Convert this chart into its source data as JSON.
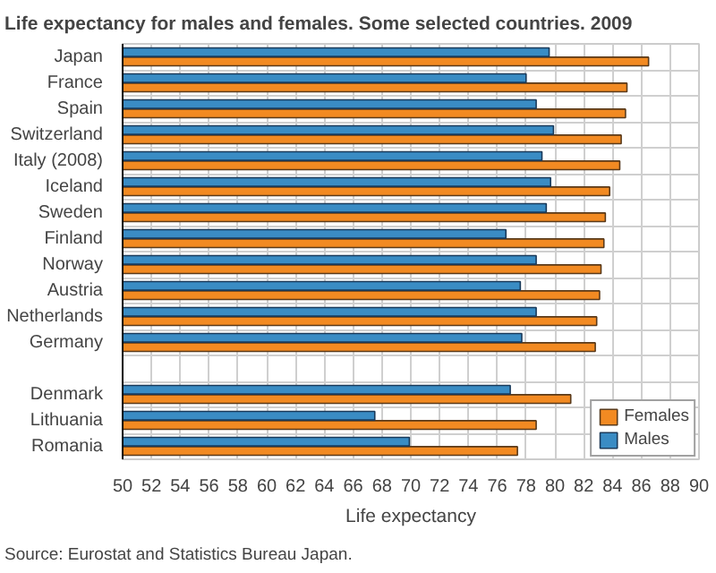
{
  "chart_data": {
    "type": "bar",
    "orientation": "horizontal",
    "title": "Life expectancy for males and females. Some selected countries. 2009",
    "xlabel": "Life expectancy",
    "categories": [
      "Japan",
      "France",
      "Spain",
      "Switzerland",
      "Italy (2008)",
      "Iceland",
      "Sweden",
      "Finland",
      "Norway",
      "Austria",
      "Netherlands",
      "Germany",
      null,
      "Denmark",
      "Lithuania",
      "Romania"
    ],
    "series": [
      {
        "name": "Females",
        "color": "#f28a22",
        "values": [
          86.5,
          85.0,
          84.9,
          84.6,
          84.5,
          83.8,
          83.5,
          83.4,
          83.2,
          83.1,
          82.9,
          82.8,
          null,
          81.1,
          78.7,
          77.4
        ]
      },
      {
        "name": "Males",
        "color": "#3a8cc4",
        "values": [
          79.6,
          78.0,
          78.7,
          79.9,
          79.1,
          79.7,
          79.4,
          76.6,
          78.7,
          77.6,
          78.7,
          77.7,
          null,
          76.9,
          67.5,
          69.9
        ]
      }
    ],
    "xlim": [
      50,
      90
    ],
    "xticks": [
      50,
      52,
      54,
      56,
      58,
      60,
      62,
      64,
      66,
      68,
      70,
      72,
      74,
      76,
      78,
      80,
      82,
      84,
      86,
      88,
      90
    ],
    "grid": true,
    "legend": "bottom right",
    "annotations": [
      "Source: Eurostat and Statistics Bureau Japan."
    ]
  }
}
